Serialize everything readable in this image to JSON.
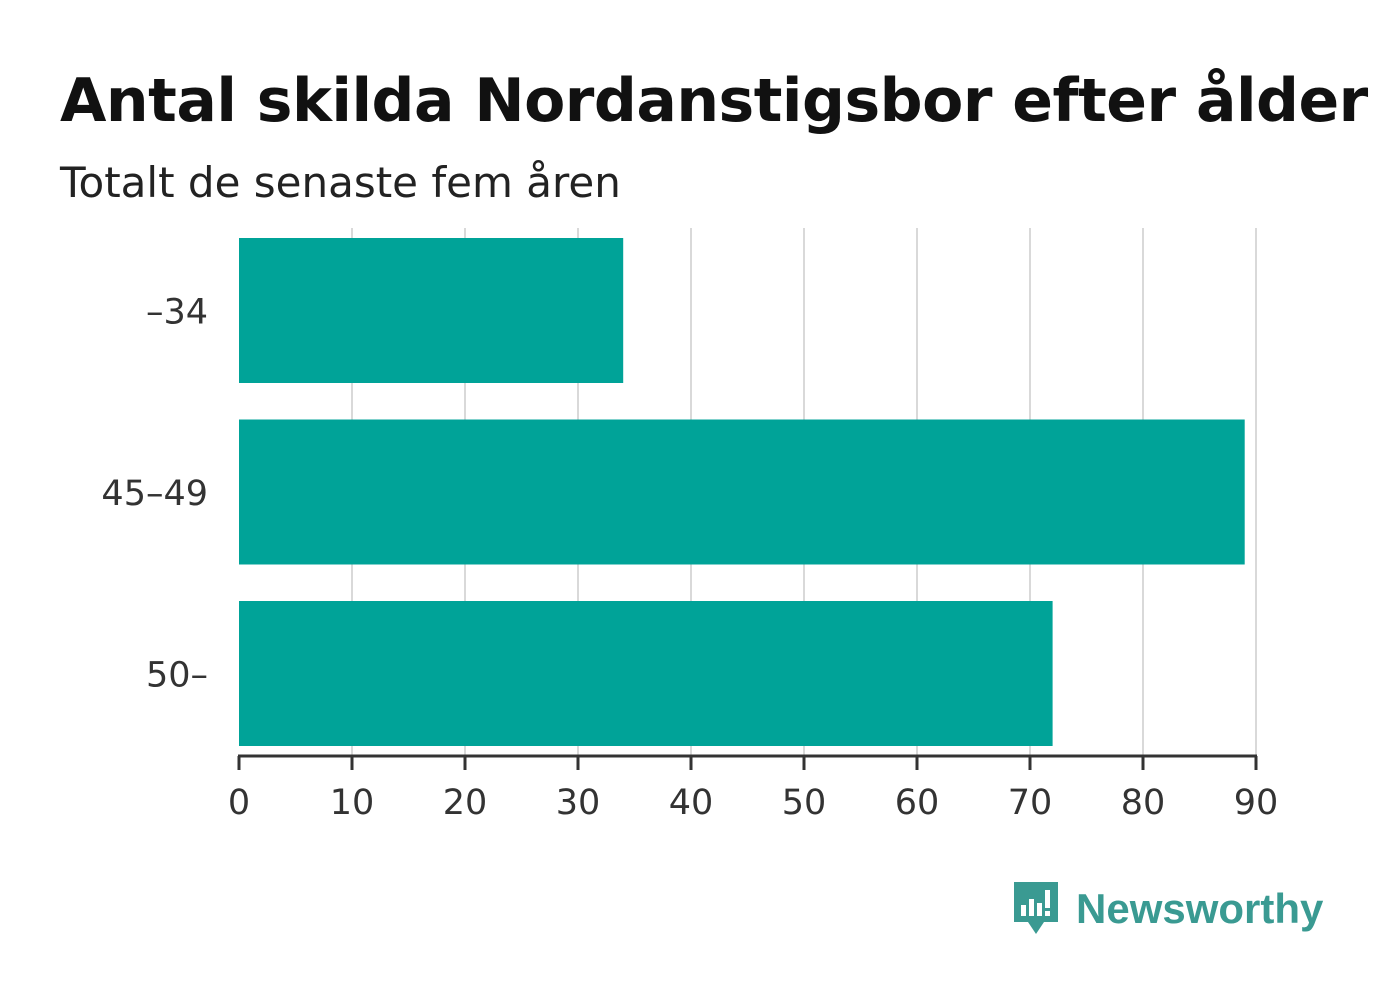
{
  "chart_data": {
    "type": "bar",
    "orientation": "horizontal",
    "title": "Antal skilda Nordanstigsbor efter ålder",
    "subtitle": "Totalt de senaste fem åren",
    "categories": [
      "–34",
      "45–49",
      "50–"
    ],
    "values": [
      34,
      89,
      72
    ],
    "xlim": [
      0,
      90
    ],
    "xticks": [
      0,
      10,
      20,
      30,
      40,
      50,
      60,
      70,
      80,
      90
    ],
    "grid": "vertical",
    "bar_color": "#00a398",
    "grid_color": "#d9d9d9",
    "axis_color": "#333333"
  },
  "brand": {
    "name": "Newsworthy",
    "icon": "newsworthy-logo-icon",
    "color": "#3a9a92"
  }
}
